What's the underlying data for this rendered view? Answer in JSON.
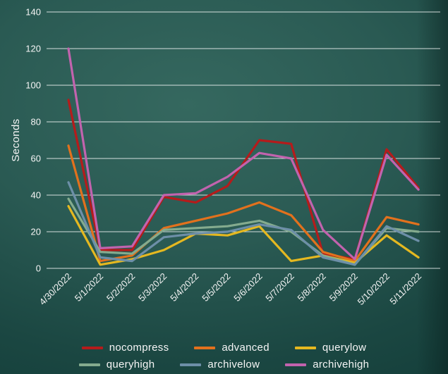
{
  "colors": {
    "background_top": "#35685f",
    "background_bottom": "#123c38",
    "grid": "#ffffff",
    "text": "#f5f5f5"
  },
  "chart_data": {
    "type": "line",
    "title": "",
    "xlabel": "",
    "ylabel": "Seconds",
    "ylim": [
      0,
      140
    ],
    "ytick_step": 20,
    "grid": "horizontal",
    "legend_position": "bottom",
    "categories": [
      "4/30/2022",
      "5/1/2022",
      "5/2/2022",
      "5/3/2022",
      "5/4/2022",
      "5/5/2022",
      "5/6/2022",
      "5/7/2022",
      "5/8/2022",
      "5/9/2022",
      "5/10/2022",
      "5/11/2022"
    ],
    "series": [
      {
        "name": "nocompress",
        "color": "#b51b1b",
        "values": [
          92,
          10,
          10,
          39,
          36,
          45,
          70,
          68,
          8,
          5,
          65,
          44
        ]
      },
      {
        "name": "advanced",
        "color": "#e2711d",
        "values": [
          67,
          4,
          7,
          22,
          26,
          30,
          36,
          29,
          9,
          4,
          28,
          24
        ]
      },
      {
        "name": "querylow",
        "color": "#e5b820",
        "values": [
          34,
          2,
          5,
          10,
          19,
          18,
          23,
          4,
          7,
          3,
          18,
          6
        ]
      },
      {
        "name": "queryhigh",
        "color": "#84ab8e",
        "values": [
          38,
          9,
          8,
          21,
          22,
          23,
          26,
          20,
          7,
          2,
          22,
          20
        ]
      },
      {
        "name": "archivelow",
        "color": "#6d8fa8",
        "values": [
          47,
          6,
          4,
          17,
          19,
          20,
          24,
          21,
          6,
          2,
          23,
          15
        ]
      },
      {
        "name": "archivehigh",
        "color": "#c263ae",
        "values": [
          120,
          11,
          12,
          40,
          41,
          50,
          63,
          60,
          21,
          5,
          62,
          43
        ]
      }
    ]
  }
}
